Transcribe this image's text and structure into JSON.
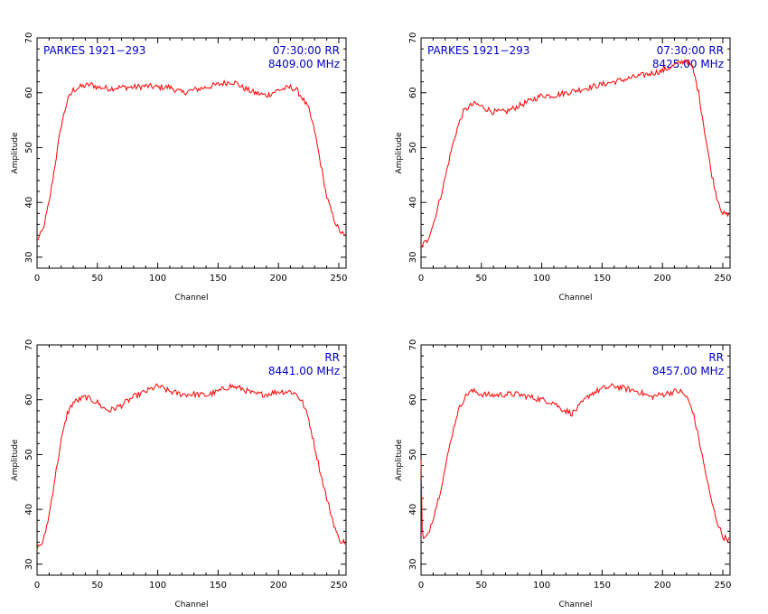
{
  "figure": {
    "colors": {
      "trace": "#ff0000",
      "annotation": "#0000cc",
      "axes": "#000000",
      "background": "#ffffff"
    }
  },
  "chart_data": [
    {
      "type": "line",
      "xlabel": "Channel",
      "ylabel": "Amplitude",
      "xlim": [
        0,
        256
      ],
      "ylim": [
        28,
        70
      ],
      "xticks": [
        0,
        50,
        100,
        150,
        200,
        250
      ],
      "yticks": [
        30,
        40,
        50,
        60,
        70
      ],
      "annotations": {
        "source": "PARKES 1921−293",
        "time_pol": "07:30:00  RR",
        "freq": "8409.00 MHz"
      },
      "series": [
        {
          "x": [
            0,
            5,
            10,
            15,
            20,
            25,
            30,
            35,
            40,
            45,
            50,
            60,
            70,
            80,
            90,
            100,
            110,
            115,
            120,
            130,
            140,
            150,
            160,
            165,
            170,
            180,
            190,
            200,
            210,
            215,
            220,
            225,
            230,
            235,
            240,
            245,
            250,
            255
          ],
          "y": [
            33,
            35,
            40,
            47,
            54,
            58.5,
            60.5,
            61,
            61.3,
            61.5,
            61,
            60.8,
            61,
            61,
            61.2,
            61,
            61,
            60.5,
            60,
            60.5,
            61,
            61.5,
            62,
            61.8,
            61,
            60,
            59.5,
            60.5,
            61,
            60.5,
            59,
            57,
            53,
            47,
            41,
            37.5,
            35,
            33.8
          ]
        }
      ]
    },
    {
      "type": "line",
      "xlabel": "Channel",
      "ylabel": "Amplitude",
      "xlim": [
        0,
        256
      ],
      "ylim": [
        28,
        70
      ],
      "xticks": [
        0,
        50,
        100,
        150,
        200,
        250
      ],
      "yticks": [
        30,
        40,
        50,
        60,
        70
      ],
      "annotations": {
        "source": "PARKES 1921−293",
        "time_pol": "07:30:00  RR",
        "freq": "8425.00 MHz"
      },
      "series": [
        {
          "x": [
            0,
            5,
            10,
            15,
            20,
            25,
            30,
            35,
            40,
            45,
            50,
            55,
            60,
            65,
            70,
            80,
            90,
            100,
            110,
            120,
            130,
            140,
            150,
            160,
            170,
            180,
            190,
            200,
            210,
            215,
            220,
            225,
            230,
            235,
            240,
            245,
            250,
            255
          ],
          "y": [
            32,
            33,
            36,
            40,
            44.5,
            49.5,
            53.5,
            56.5,
            57.5,
            58,
            57.5,
            57,
            56.5,
            56.5,
            56.5,
            57.5,
            58.5,
            59.5,
            59.5,
            60,
            60.5,
            61,
            61.5,
            62,
            62.5,
            63,
            63.5,
            64,
            65,
            65.5,
            66,
            64.5,
            60,
            53,
            46,
            41,
            38,
            37.5
          ]
        }
      ]
    },
    {
      "type": "line",
      "xlabel": "Channel",
      "ylabel": "Amplitude",
      "xlim": [
        0,
        256
      ],
      "ylim": [
        28,
        70
      ],
      "xticks": [
        0,
        50,
        100,
        150,
        200,
        250
      ],
      "yticks": [
        30,
        40,
        50,
        60,
        70
      ],
      "annotations": {
        "source": "",
        "time_pol": "RR",
        "freq": "8441.00 MHz"
      },
      "series": [
        {
          "x": [
            0,
            5,
            10,
            15,
            20,
            25,
            30,
            35,
            40,
            45,
            50,
            55,
            60,
            65,
            70,
            80,
            90,
            100,
            110,
            120,
            130,
            140,
            150,
            160,
            170,
            180,
            190,
            200,
            210,
            215,
            220,
            225,
            230,
            235,
            240,
            245,
            250,
            255
          ],
          "y": [
            33,
            34,
            39,
            46,
            52.5,
            57.5,
            59.5,
            60,
            60.5,
            60,
            59.5,
            58.5,
            58,
            58.5,
            59,
            60.5,
            61.5,
            62.5,
            61.5,
            61,
            61,
            60.8,
            61.5,
            62.5,
            62,
            61,
            61,
            61.5,
            61.5,
            61,
            59.5,
            56.5,
            51.5,
            46.5,
            42,
            38,
            34.5,
            34
          ]
        }
      ]
    },
    {
      "type": "line",
      "xlabel": "Channel",
      "ylabel": "Amplitude",
      "xlim": [
        0,
        256
      ],
      "ylim": [
        28,
        70
      ],
      "xticks": [
        0,
        50,
        100,
        150,
        200,
        250
      ],
      "yticks": [
        30,
        40,
        50,
        60,
        70
      ],
      "annotations": {
        "source": "",
        "time_pol": "RR",
        "freq": "8457.00 MHz"
      },
      "series": [
        {
          "x": [
            0,
            1,
            2,
            5,
            10,
            15,
            20,
            25,
            30,
            35,
            40,
            45,
            50,
            60,
            70,
            80,
            90,
            100,
            110,
            115,
            120,
            125,
            130,
            140,
            150,
            160,
            170,
            180,
            190,
            200,
            210,
            215,
            220,
            225,
            230,
            235,
            240,
            245,
            250,
            255
          ],
          "y": [
            49,
            36,
            34.5,
            35,
            38.5,
            42.5,
            47.5,
            53,
            57.5,
            60,
            61.5,
            61.5,
            61,
            60.8,
            61,
            61,
            60.5,
            60,
            59.5,
            58.5,
            58,
            57.5,
            58.5,
            61,
            62,
            62.5,
            62,
            61.5,
            60.5,
            61,
            61.5,
            61.5,
            60.5,
            58,
            53,
            47.5,
            42,
            38,
            35,
            34.5
          ]
        }
      ]
    }
  ]
}
